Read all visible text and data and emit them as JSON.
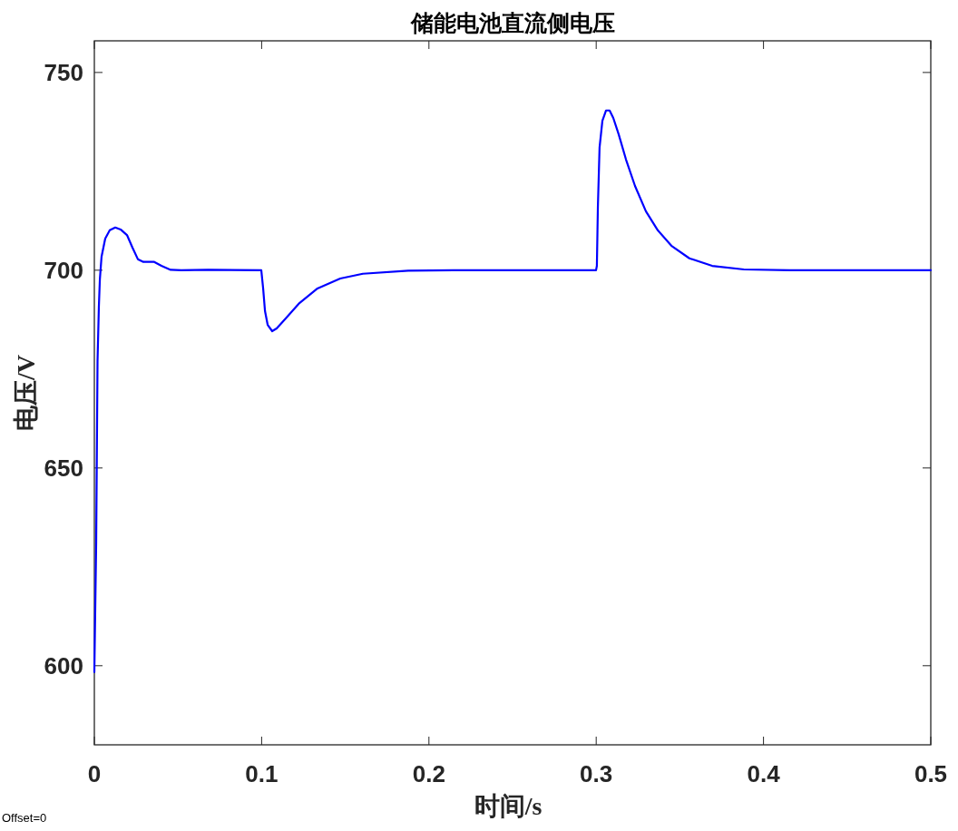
{
  "chart_data": {
    "type": "line",
    "title": "储能电池直流侧电压",
    "xlabel": "时间/s",
    "ylabel": "电压/V",
    "x": [
      0,
      0.0011,
      0.0019,
      0.0027,
      0.0033,
      0.0043,
      0.0065,
      0.0092,
      0.0125,
      0.0157,
      0.0195,
      0.0228,
      0.026,
      0.0293,
      0.0358,
      0.0401,
      0.0456,
      0.052,
      0.068,
      0.0998,
      0.1009,
      0.102,
      0.1036,
      0.1063,
      0.109,
      0.1144,
      0.1226,
      0.1334,
      0.147,
      0.1605,
      0.1876,
      0.2148,
      0.2999,
      0.3004,
      0.301,
      0.302,
      0.3037,
      0.3059,
      0.308,
      0.3102,
      0.3134,
      0.3178,
      0.3232,
      0.3297,
      0.3368,
      0.3449,
      0.3557,
      0.3693,
      0.3883,
      0.4154,
      0.5
    ],
    "series": [
      {
        "color": "#0000ff",
        "values": [
          598.4,
          631.2,
          677,
          690.8,
          697.7,
          703.4,
          708,
          710.1,
          710.8,
          710.3,
          708.9,
          705.7,
          702.8,
          702.1,
          702.1,
          701.1,
          700.1,
          700,
          700.1,
          700,
          695.4,
          689.7,
          686.2,
          684.6,
          685.3,
          687.8,
          691.7,
          695.4,
          697.9,
          699.1,
          699.9,
          700,
          700,
          701.1,
          716,
          731,
          737.8,
          740.4,
          740.4,
          738.5,
          734.4,
          728,
          721.3,
          714.9,
          710.1,
          706.2,
          703,
          701.1,
          700.2,
          700,
          700
        ]
      }
    ],
    "xlim": [
      0,
      0.5
    ],
    "ylim": [
      580,
      758
    ],
    "xticks": [
      0,
      0.1,
      0.2,
      0.3,
      0.4,
      0.5
    ],
    "yticks": [
      600,
      650,
      700,
      750
    ],
    "annotations": [
      "Offset=0"
    ]
  }
}
